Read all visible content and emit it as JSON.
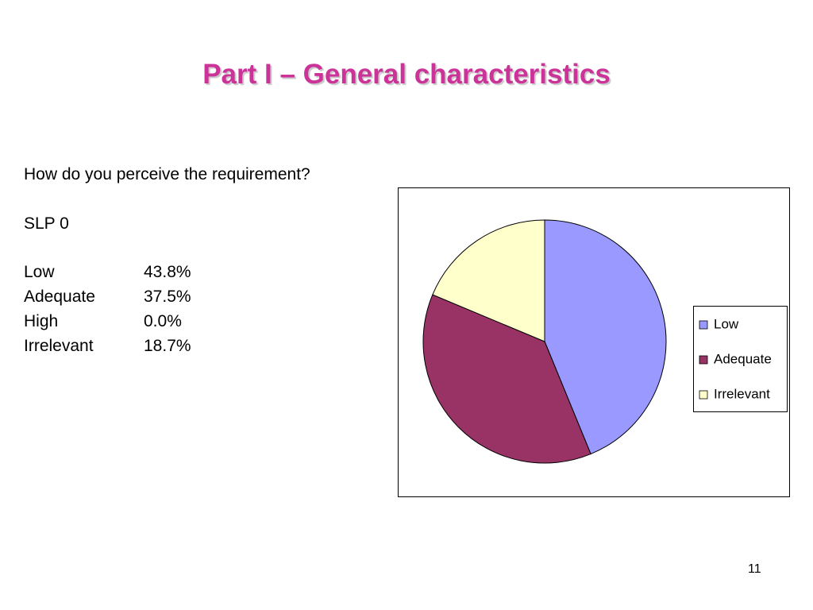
{
  "slide": {
    "title": "Part I – General characteristics",
    "question": "How do you perceive the requirement?",
    "subtitle": "SLP 0",
    "rows": [
      [
        "Low",
        "43.8%"
      ],
      [
        "Adequate",
        "37.5%"
      ],
      [
        "High",
        "0.0%"
      ],
      [
        "Irrelevant",
        "18.7%"
      ]
    ],
    "page_number": "11"
  },
  "chart_data": {
    "type": "pie",
    "categories": [
      "Low",
      "Adequate",
      "Irrelevant"
    ],
    "values": [
      43.8,
      37.5,
      18.7
    ],
    "colors": [
      "#9999ff",
      "#993366",
      "#ffffcc"
    ],
    "legend": "right"
  }
}
